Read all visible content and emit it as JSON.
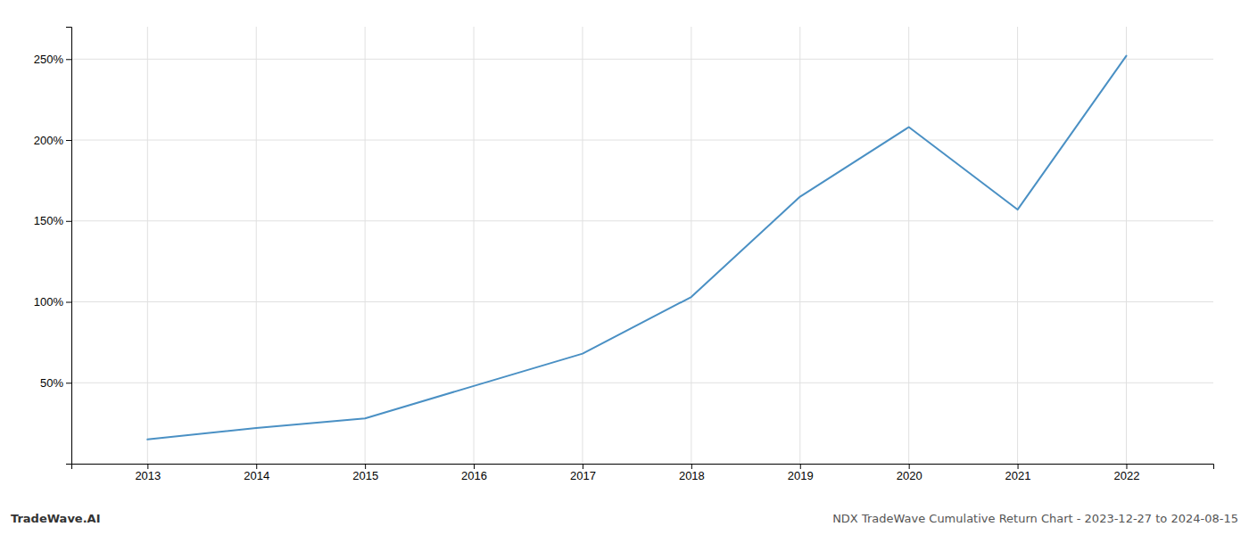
{
  "chart_data": {
    "type": "line",
    "x": [
      2013,
      2014,
      2015,
      2016,
      2017,
      2018,
      2019,
      2020,
      2021,
      2022
    ],
    "values": [
      15,
      22,
      28,
      48,
      68,
      103,
      165,
      208,
      157,
      252
    ],
    "color": "#4a90c4",
    "xlim": [
      2012.3,
      2022.8
    ],
    "xticks": [
      2013,
      2014,
      2015,
      2016,
      2017,
      2018,
      2019,
      2020,
      2021,
      2022
    ],
    "ylim": [
      0,
      270
    ],
    "yticks": [
      {
        "value": 50,
        "label": "50%"
      },
      {
        "value": 100,
        "label": "100%"
      },
      {
        "value": 150,
        "label": "150%"
      },
      {
        "value": 200,
        "label": "200%"
      },
      {
        "value": 250,
        "label": "250%"
      }
    ],
    "grid": true,
    "annotations": [
      "TradeWave.AI",
      "NDX TradeWave Cumulative Return Chart - 2023-12-27 to 2024-08-15"
    ]
  }
}
